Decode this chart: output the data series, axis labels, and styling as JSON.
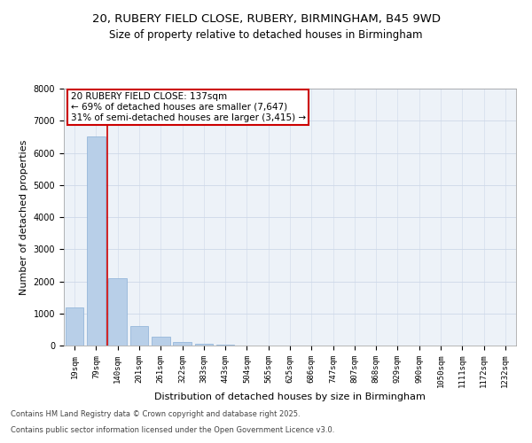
{
  "title1": "20, RUBERY FIELD CLOSE, RUBERY, BIRMINGHAM, B45 9WD",
  "title2": "Size of property relative to detached houses in Birmingham",
  "xlabel": "Distribution of detached houses by size in Birmingham",
  "ylabel": "Number of detached properties",
  "categories": [
    "19sqm",
    "79sqm",
    "140sqm",
    "201sqm",
    "261sqm",
    "322sqm",
    "383sqm",
    "443sqm",
    "504sqm",
    "565sqm",
    "625sqm",
    "686sqm",
    "747sqm",
    "807sqm",
    "868sqm",
    "929sqm",
    "990sqm",
    "1050sqm",
    "1111sqm",
    "1172sqm",
    "1232sqm"
  ],
  "values": [
    1200,
    6500,
    2100,
    600,
    280,
    120,
    50,
    25,
    10,
    5,
    2,
    0,
    0,
    0,
    0,
    0,
    0,
    0,
    0,
    0,
    0
  ],
  "bar_color": "#b8cfe8",
  "bar_edge_color": "#8aafd6",
  "vline_color": "#cc0000",
  "annotation_line1": "20 RUBERY FIELD CLOSE: 137sqm",
  "annotation_line2": "← 69% of detached houses are smaller (7,647)",
  "annotation_line3": "31% of semi-detached houses are larger (3,415) →",
  "box_edge_color": "#cc0000",
  "grid_color": "#cdd8e8",
  "background_color": "#edf2f8",
  "ylim": [
    0,
    8000
  ],
  "yticks": [
    0,
    1000,
    2000,
    3000,
    4000,
    5000,
    6000,
    7000,
    8000
  ],
  "footnote1": "Contains HM Land Registry data © Crown copyright and database right 2025.",
  "footnote2": "Contains public sector information licensed under the Open Government Licence v3.0.",
  "title_fontsize": 9.5,
  "subtitle_fontsize": 8.5,
  "tick_fontsize": 6.5,
  "ylabel_fontsize": 8,
  "xlabel_fontsize": 8,
  "annot_fontsize": 7.5,
  "footnote_fontsize": 6
}
